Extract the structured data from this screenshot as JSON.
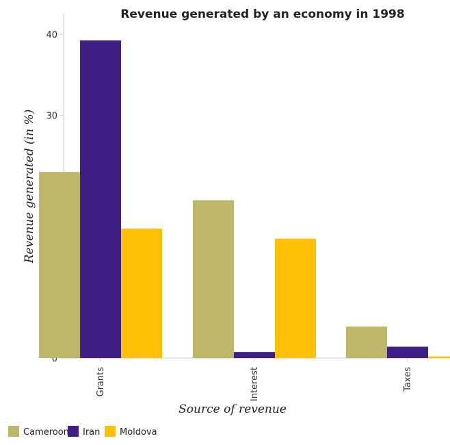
{
  "chart_data": {
    "type": "bar",
    "title": "Revenue generated by an economy in 1998",
    "xlabel": "Source of revenue",
    "ylabel": "Revenue generated (in %)",
    "categories": [
      "Grants",
      "Interest",
      "Taxes"
    ],
    "series": [
      {
        "name": "Cameroon",
        "color": "#bdb76b",
        "values": [
          23.0,
          19.5,
          3.9
        ]
      },
      {
        "name": "Iran",
        "color": "#3f1f85",
        "values": [
          39.25,
          0.75,
          1.4
        ]
      },
      {
        "name": "Moldova",
        "color": "#ffc107",
        "values": [
          16.0,
          14.75,
          0.2
        ]
      }
    ],
    "ylim": [
      0,
      41
    ],
    "yticks": [
      "0",
      "10",
      "20",
      "30",
      "40"
    ],
    "grid": false,
    "legend_position": "bottom-left"
  }
}
